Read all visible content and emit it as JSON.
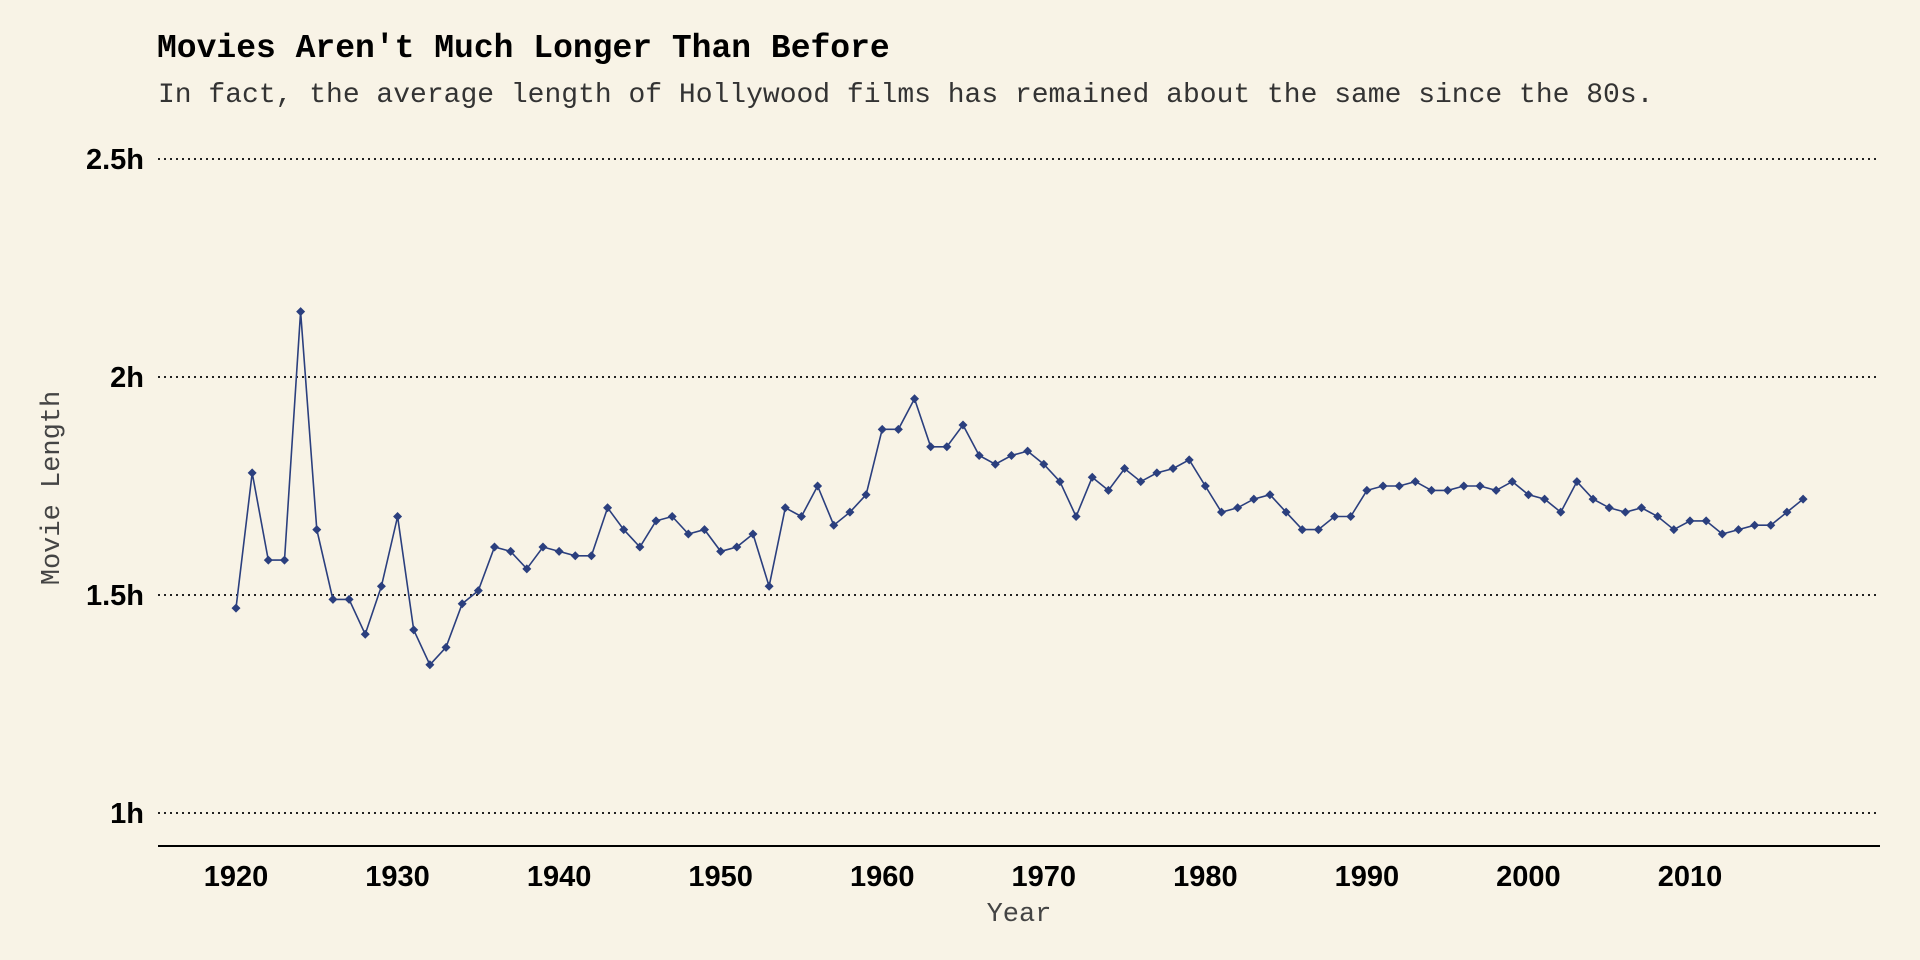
{
  "chart_data": {
    "type": "line",
    "title": "Movies Aren't Much Longer Than Before",
    "subtitle": "In fact, the average length of Hollywood films has remained about the same since the 80s.",
    "xlabel": "Year",
    "ylabel": "Movie Length",
    "xlim": [
      1915,
      2026
    ],
    "ylim": [
      0.92,
      2.5
    ],
    "x_ticks": [
      {
        "value": 1920,
        "label": "1920"
      },
      {
        "value": 1930,
        "label": "1930"
      },
      {
        "value": 1940,
        "label": "1940"
      },
      {
        "value": 1950,
        "label": "1950"
      },
      {
        "value": 1960,
        "label": "1960"
      },
      {
        "value": 1970,
        "label": "1970"
      },
      {
        "value": 1980,
        "label": "1980"
      },
      {
        "value": 1990,
        "label": "1990"
      },
      {
        "value": 2000,
        "label": "2000"
      },
      {
        "value": 2010,
        "label": "2010"
      }
    ],
    "y_ticks": [
      {
        "value": 1,
        "label": "1h"
      },
      {
        "value": 1.5,
        "label": "1.5h"
      },
      {
        "value": 2,
        "label": "2h"
      },
      {
        "value": 2.5,
        "label": "2.5h"
      }
    ],
    "grid": {
      "horizontal": true,
      "vertical": false,
      "style": "dotted"
    },
    "series_color": "#2b3f7e",
    "series": [
      {
        "x": [
          1920,
          1921,
          1922,
          1923,
          1924,
          1925,
          1926,
          1927,
          1928,
          1929,
          1930,
          1931,
          1932,
          1933,
          1934,
          1935,
          1936,
          1937,
          1938,
          1939,
          1940,
          1941,
          1942,
          1943,
          1944,
          1945,
          1946,
          1947,
          1948,
          1949,
          1950,
          1951,
          1952,
          1953,
          1954,
          1955,
          1956,
          1957,
          1958,
          1959,
          1960,
          1961,
          1962,
          1963,
          1964,
          1965,
          1966,
          1967,
          1968,
          1969,
          1970,
          1971,
          1972,
          1973,
          1974,
          1975,
          1976,
          1977,
          1978,
          1979,
          1980,
          1981,
          1982,
          1983,
          1984,
          1985,
          1986,
          1987,
          1988,
          1989,
          1990,
          1991,
          1992,
          1993,
          1994,
          1995,
          1996,
          1997,
          1998,
          1999,
          2000,
          2001,
          2002,
          2003,
          2004,
          2005,
          2006,
          2007,
          2008,
          2009,
          2010,
          2011,
          2012,
          2013,
          2014,
          2015,
          2016,
          2017
        ],
        "values": [
          1.47,
          1.78,
          1.58,
          1.58,
          2.15,
          1.65,
          1.49,
          1.49,
          1.41,
          1.52,
          1.68,
          1.42,
          1.34,
          1.38,
          1.48,
          1.51,
          1.61,
          1.6,
          1.56,
          1.61,
          1.6,
          1.59,
          1.59,
          1.7,
          1.65,
          1.61,
          1.67,
          1.68,
          1.64,
          1.65,
          1.6,
          1.61,
          1.64,
          1.52,
          1.7,
          1.68,
          1.75,
          1.66,
          1.69,
          1.73,
          1.88,
          1.88,
          1.95,
          1.84,
          1.84,
          1.89,
          1.82,
          1.8,
          1.82,
          1.83,
          1.8,
          1.76,
          1.68,
          1.77,
          1.74,
          1.79,
          1.76,
          1.78,
          1.79,
          1.81,
          1.75,
          1.69,
          1.7,
          1.72,
          1.73,
          1.69,
          1.65,
          1.65,
          1.68,
          1.68,
          1.74,
          1.75,
          1.75,
          1.76,
          1.74,
          1.74,
          1.75,
          1.75,
          1.74,
          1.76,
          1.73,
          1.72,
          1.69,
          1.76,
          1.72,
          1.7,
          1.69,
          1.7,
          1.68,
          1.65,
          1.67,
          1.67,
          1.64,
          1.65,
          1.66,
          1.66,
          1.69,
          1.72
        ]
      }
    ]
  }
}
